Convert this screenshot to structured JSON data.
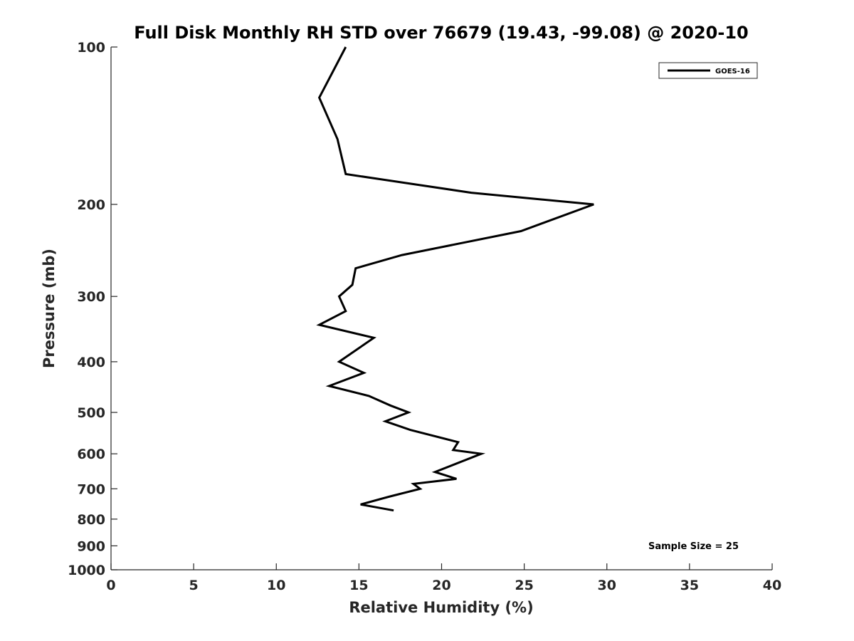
{
  "chart_data": {
    "type": "line",
    "title": "Full Disk Monthly RH STD over 76679 (19.43, -99.08) @ 2020-10",
    "xlabel": "Relative Humidity (%)",
    "ylabel": "Pressure (mb)",
    "xlim": [
      0,
      40
    ],
    "ylim": [
      100,
      1000
    ],
    "yscale": "log",
    "yreversed": true,
    "xticks": [
      0,
      5,
      10,
      15,
      20,
      25,
      30,
      35,
      40
    ],
    "yticks": [
      100,
      200,
      300,
      400,
      500,
      600,
      700,
      800,
      900,
      1000
    ],
    "grid": false,
    "legend": {
      "location": "top-right",
      "entries": [
        "GOES-16"
      ]
    },
    "annotation": "Sample Size = 25",
    "series": [
      {
        "name": "GOES-16",
        "color": "#000000",
        "points": [
          {
            "x": 14.2,
            "y": 100
          },
          {
            "x": 12.6,
            "y": 125
          },
          {
            "x": 13.7,
            "y": 150
          },
          {
            "x": 14.2,
            "y": 175
          },
          {
            "x": 21.8,
            "y": 190
          },
          {
            "x": 29.2,
            "y": 200
          },
          {
            "x": 24.8,
            "y": 225
          },
          {
            "x": 17.6,
            "y": 250
          },
          {
            "x": 14.8,
            "y": 265
          },
          {
            "x": 14.6,
            "y": 285
          },
          {
            "x": 13.8,
            "y": 300
          },
          {
            "x": 14.2,
            "y": 320
          },
          {
            "x": 12.6,
            "y": 340
          },
          {
            "x": 15.9,
            "y": 360
          },
          {
            "x": 13.8,
            "y": 400
          },
          {
            "x": 15.3,
            "y": 420
          },
          {
            "x": 13.2,
            "y": 445
          },
          {
            "x": 15.6,
            "y": 465
          },
          {
            "x": 16.9,
            "y": 485
          },
          {
            "x": 18.0,
            "y": 500
          },
          {
            "x": 16.6,
            "y": 520
          },
          {
            "x": 18.1,
            "y": 540
          },
          {
            "x": 21.0,
            "y": 570
          },
          {
            "x": 20.7,
            "y": 590
          },
          {
            "x": 22.4,
            "y": 600
          },
          {
            "x": 19.6,
            "y": 650
          },
          {
            "x": 20.9,
            "y": 670
          },
          {
            "x": 18.3,
            "y": 685
          },
          {
            "x": 18.7,
            "y": 700
          },
          {
            "x": 16.8,
            "y": 725
          },
          {
            "x": 15.1,
            "y": 750
          },
          {
            "x": 17.1,
            "y": 770
          }
        ]
      }
    ]
  }
}
